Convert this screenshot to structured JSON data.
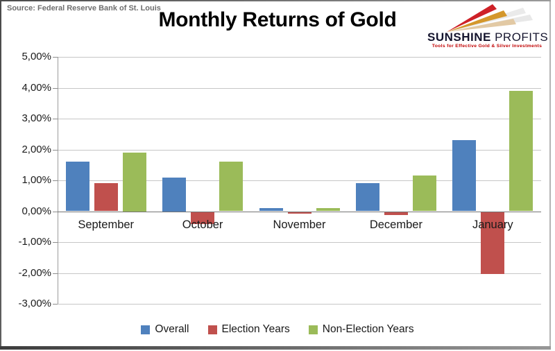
{
  "source_note": "Source: Federal Reserve Bank of St. Louis",
  "title": "Monthly Returns of Gold",
  "logo": {
    "name_primary": "SUNSHINE",
    "name_secondary": " PROFITS",
    "tagline": "Tools for Effective Gold & Silver Investments"
  },
  "colors": {
    "gridline": "#c6c6c6",
    "zero_line": "#737373",
    "axis": "#9a9a9a",
    "overall_blue": "#4F81BD",
    "election_red": "#C0504D",
    "non_election_green": "#9BBB59",
    "logo_red": "#CE2127",
    "logo_gold": "#D4972B",
    "logo_tan": "#E2C9A4",
    "tagline_red": "#C00000"
  },
  "chart_data": {
    "type": "bar",
    "title": "Monthly Returns of Gold",
    "categories": [
      "September",
      "October",
      "November",
      "December",
      "January"
    ],
    "series": [
      {
        "name": "Overall",
        "color": "#4F81BD",
        "values": [
          1.6,
          1.1,
          0.1,
          0.9,
          2.3
        ]
      },
      {
        "name": "Election Years",
        "color": "#C0504D",
        "values": [
          0.9,
          -0.4,
          -0.05,
          -0.1,
          -2.0
        ]
      },
      {
        "name": "Non-Election Years",
        "color": "#9BBB59",
        "values": [
          1.9,
          1.6,
          0.1,
          1.15,
          3.9
        ]
      }
    ],
    "y_ticks": [
      "5,00%",
      "4,00%",
      "3,00%",
      "2,00%",
      "1,00%",
      "0,00%",
      "-1,00%",
      "-2,00%",
      "-3,00%"
    ],
    "y_tick_values": [
      5,
      4,
      3,
      2,
      1,
      0,
      -1,
      -2,
      -3
    ],
    "ylim": [
      -3,
      5
    ],
    "value_unit": "percent",
    "grid": true,
    "legend_position": "bottom",
    "legend_labels": [
      "Overall",
      "Election Years",
      "Non-Election Years"
    ]
  }
}
